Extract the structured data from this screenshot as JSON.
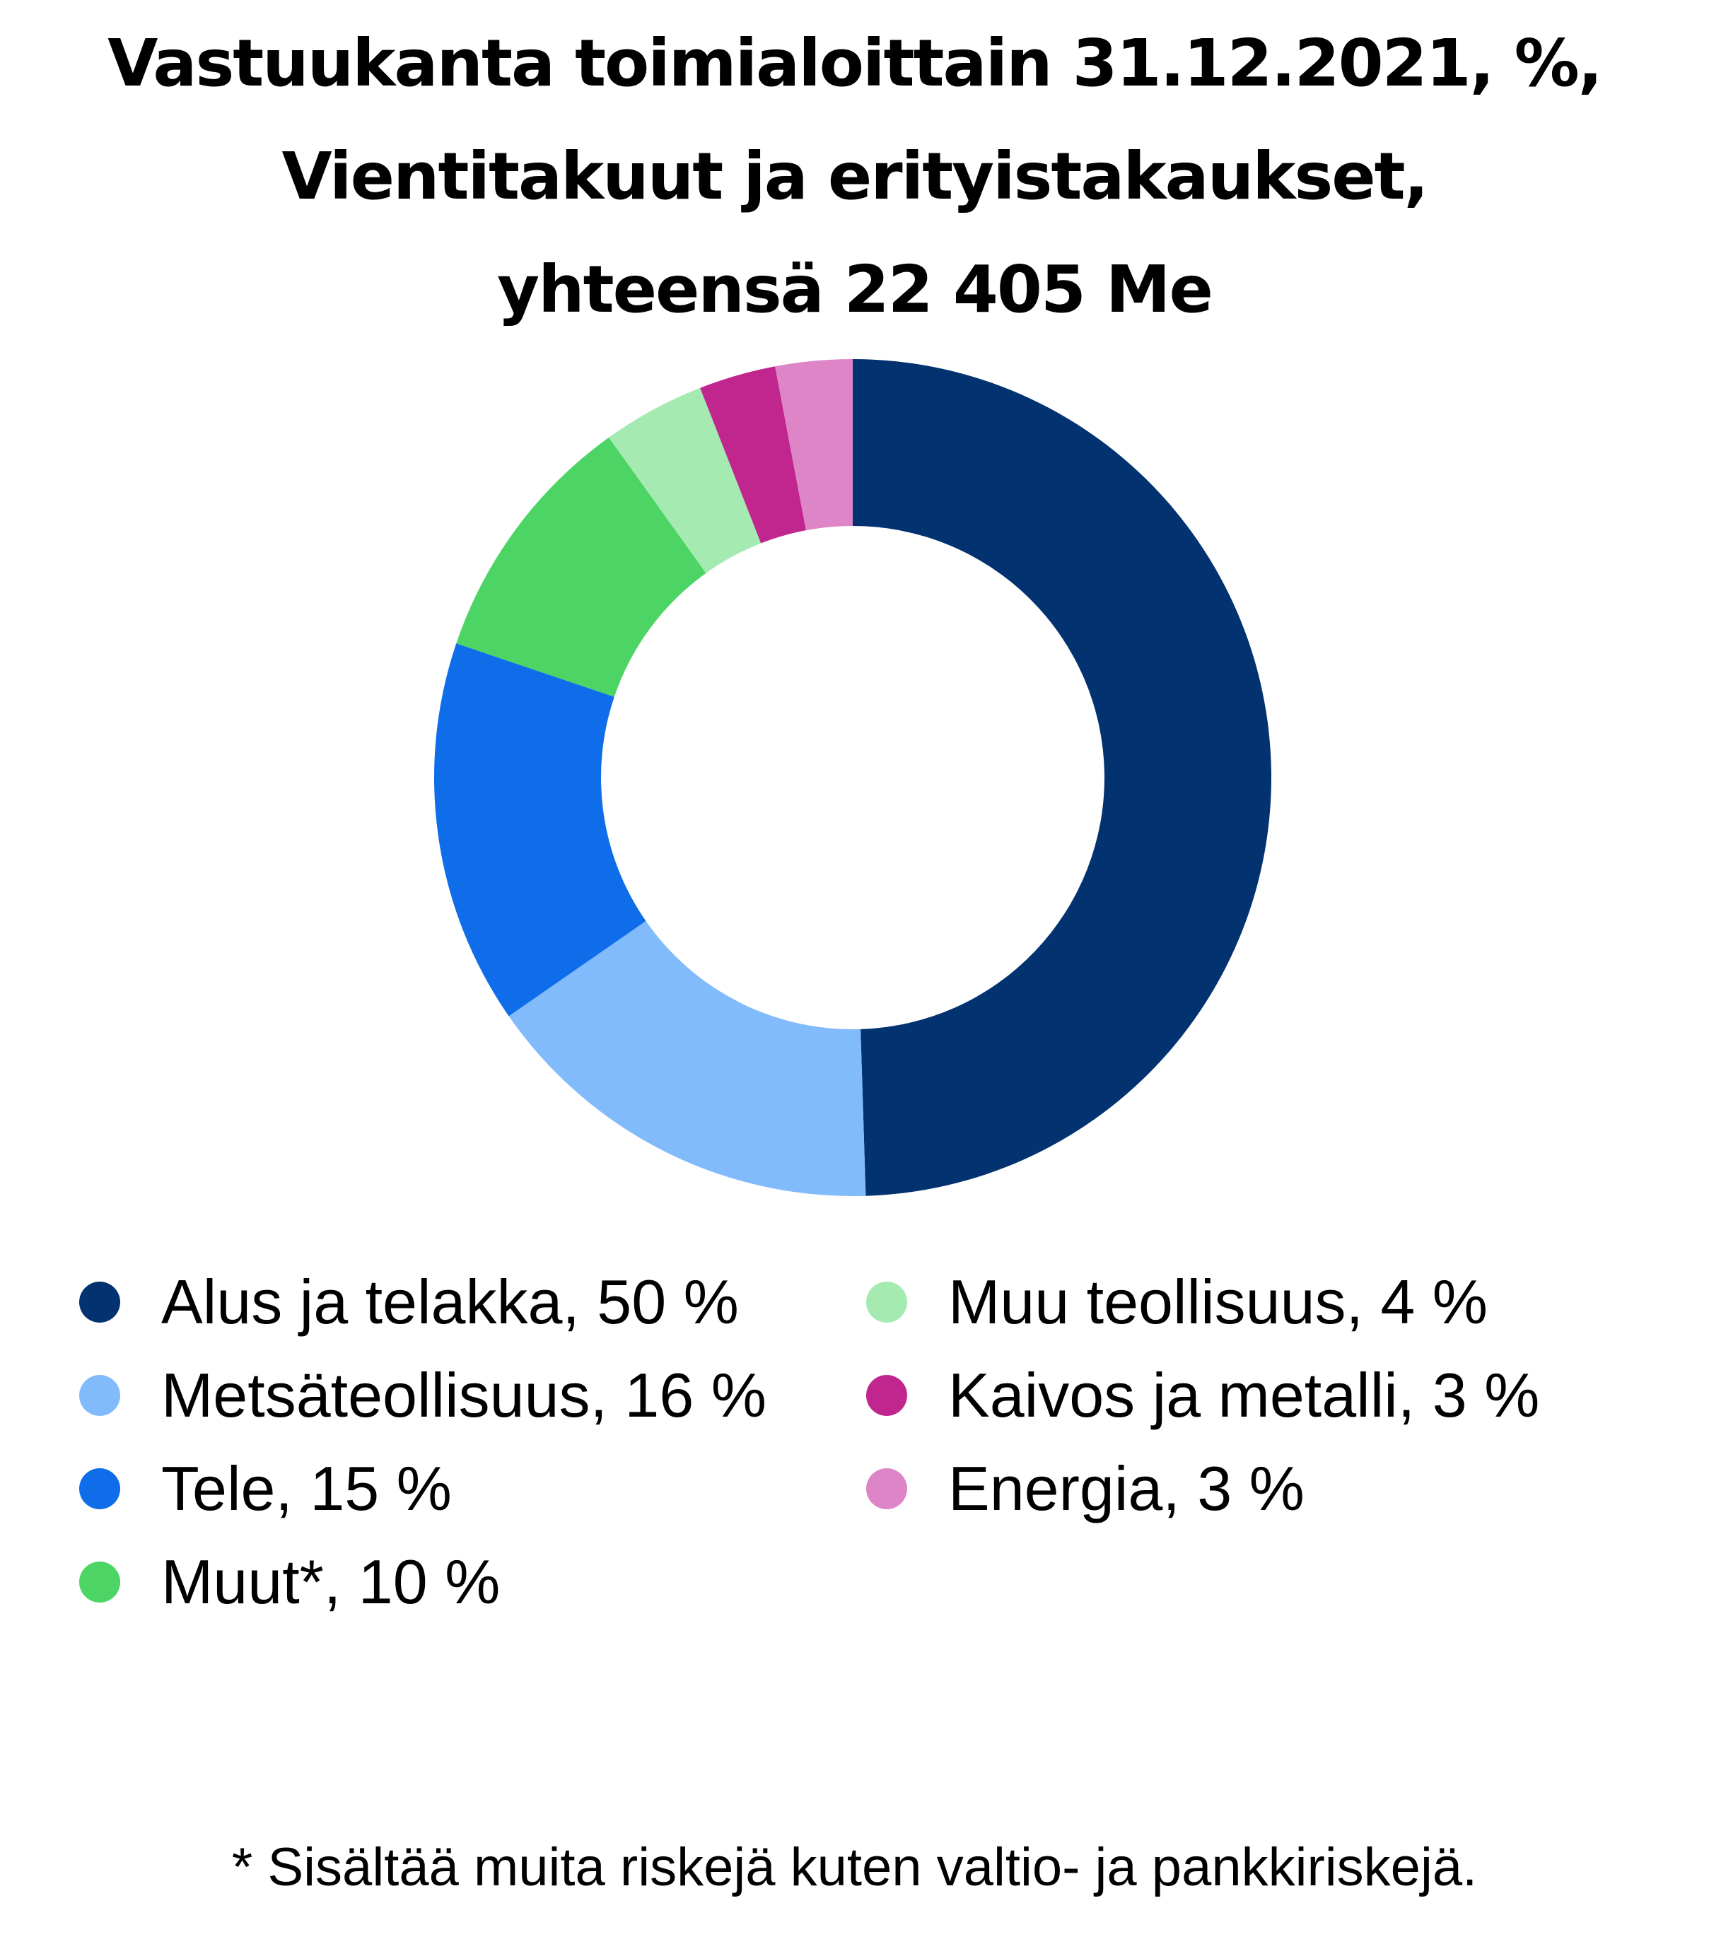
{
  "chart_data": {
    "type": "pie",
    "variant": "donut",
    "title_lines": [
      "Vastuukanta toimialoittain 31.12.2021, %,",
      "Vientitakuut ja erityistakaukset,",
      "yhteensä 22 405 Me"
    ],
    "slices": [
      {
        "label": "Alus ja telakka, 50 %",
        "name": "Alus ja telakka",
        "value": 50,
        "color": "#033271"
      },
      {
        "label": "Metsäteollisuus, 16 %",
        "name": "Metsäteollisuus",
        "value": 16,
        "color": "#82BBFC"
      },
      {
        "label": "Tele, 15 %",
        "name": "Tele",
        "value": 15,
        "color": "#0F6DEA"
      },
      {
        "label": "Muut*, 10 %",
        "name": "Muut*",
        "value": 10,
        "color": "#4CD564"
      },
      {
        "label": "Muu teollisuus, 4 %",
        "name": "Muu teollisuus",
        "value": 4,
        "color": "#A4EAB1"
      },
      {
        "label": "Kaivos ja metalli, 3 %",
        "name": "Kaivos ja metalli",
        "value": 3,
        "color": "#C0268E"
      },
      {
        "label": "Energia, 3 %",
        "name": "Energia",
        "value": 3,
        "color": "#DE85C8"
      }
    ],
    "legend_placement": "bottom, two columns",
    "footnote": "* Sisältää muita riskejä kuten valtio- ja pankkiriskejä."
  }
}
